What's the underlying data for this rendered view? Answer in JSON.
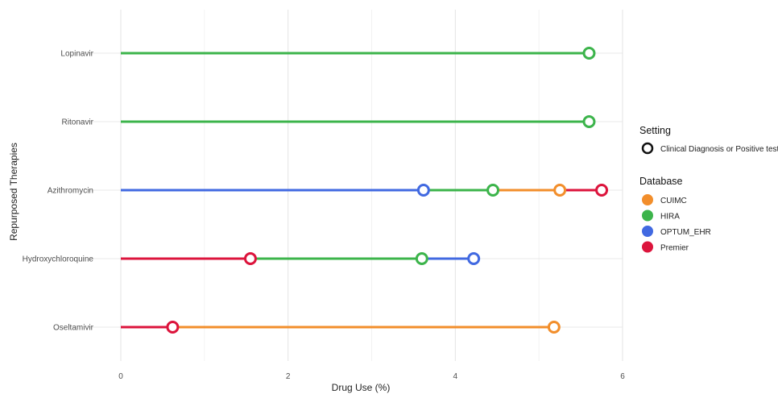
{
  "chart_data": {
    "type": "line",
    "subtype": "dumbbell",
    "title": "",
    "xlabel": "Drug Use (%)",
    "ylabel": "Repurposed Therapies",
    "xlim": [
      0,
      6
    ],
    "xticks": [
      0,
      2,
      4,
      6
    ],
    "categories": [
      "Lopinavir",
      "Ritonavir",
      "Azithromycin",
      "Hydroxychloroquine",
      "Oseltamivir"
    ],
    "grid": true,
    "legend_placement": "right",
    "series": [
      {
        "name": "CUIMC",
        "color": "#F28E2B",
        "values": [
          null,
          null,
          5.25,
          null,
          5.18
        ]
      },
      {
        "name": "HIRA",
        "color": "#3CB44B",
        "values": [
          5.6,
          5.6,
          4.45,
          3.6,
          null
        ]
      },
      {
        "name": "OPTUM_EHR",
        "color": "#4169E1",
        "values": [
          null,
          null,
          3.62,
          4.22,
          null
        ]
      },
      {
        "name": "Premier",
        "color": "#DC143C",
        "values": [
          null,
          null,
          5.75,
          1.55,
          0.62
        ]
      }
    ],
    "legends": {
      "setting": {
        "title": "Setting",
        "items": [
          "Clinical Diagnosis or Positive test"
        ]
      },
      "database": {
        "title": "Database",
        "items": [
          "CUIMC",
          "HIRA",
          "OPTUM_EHR",
          "Premier"
        ]
      }
    }
  }
}
